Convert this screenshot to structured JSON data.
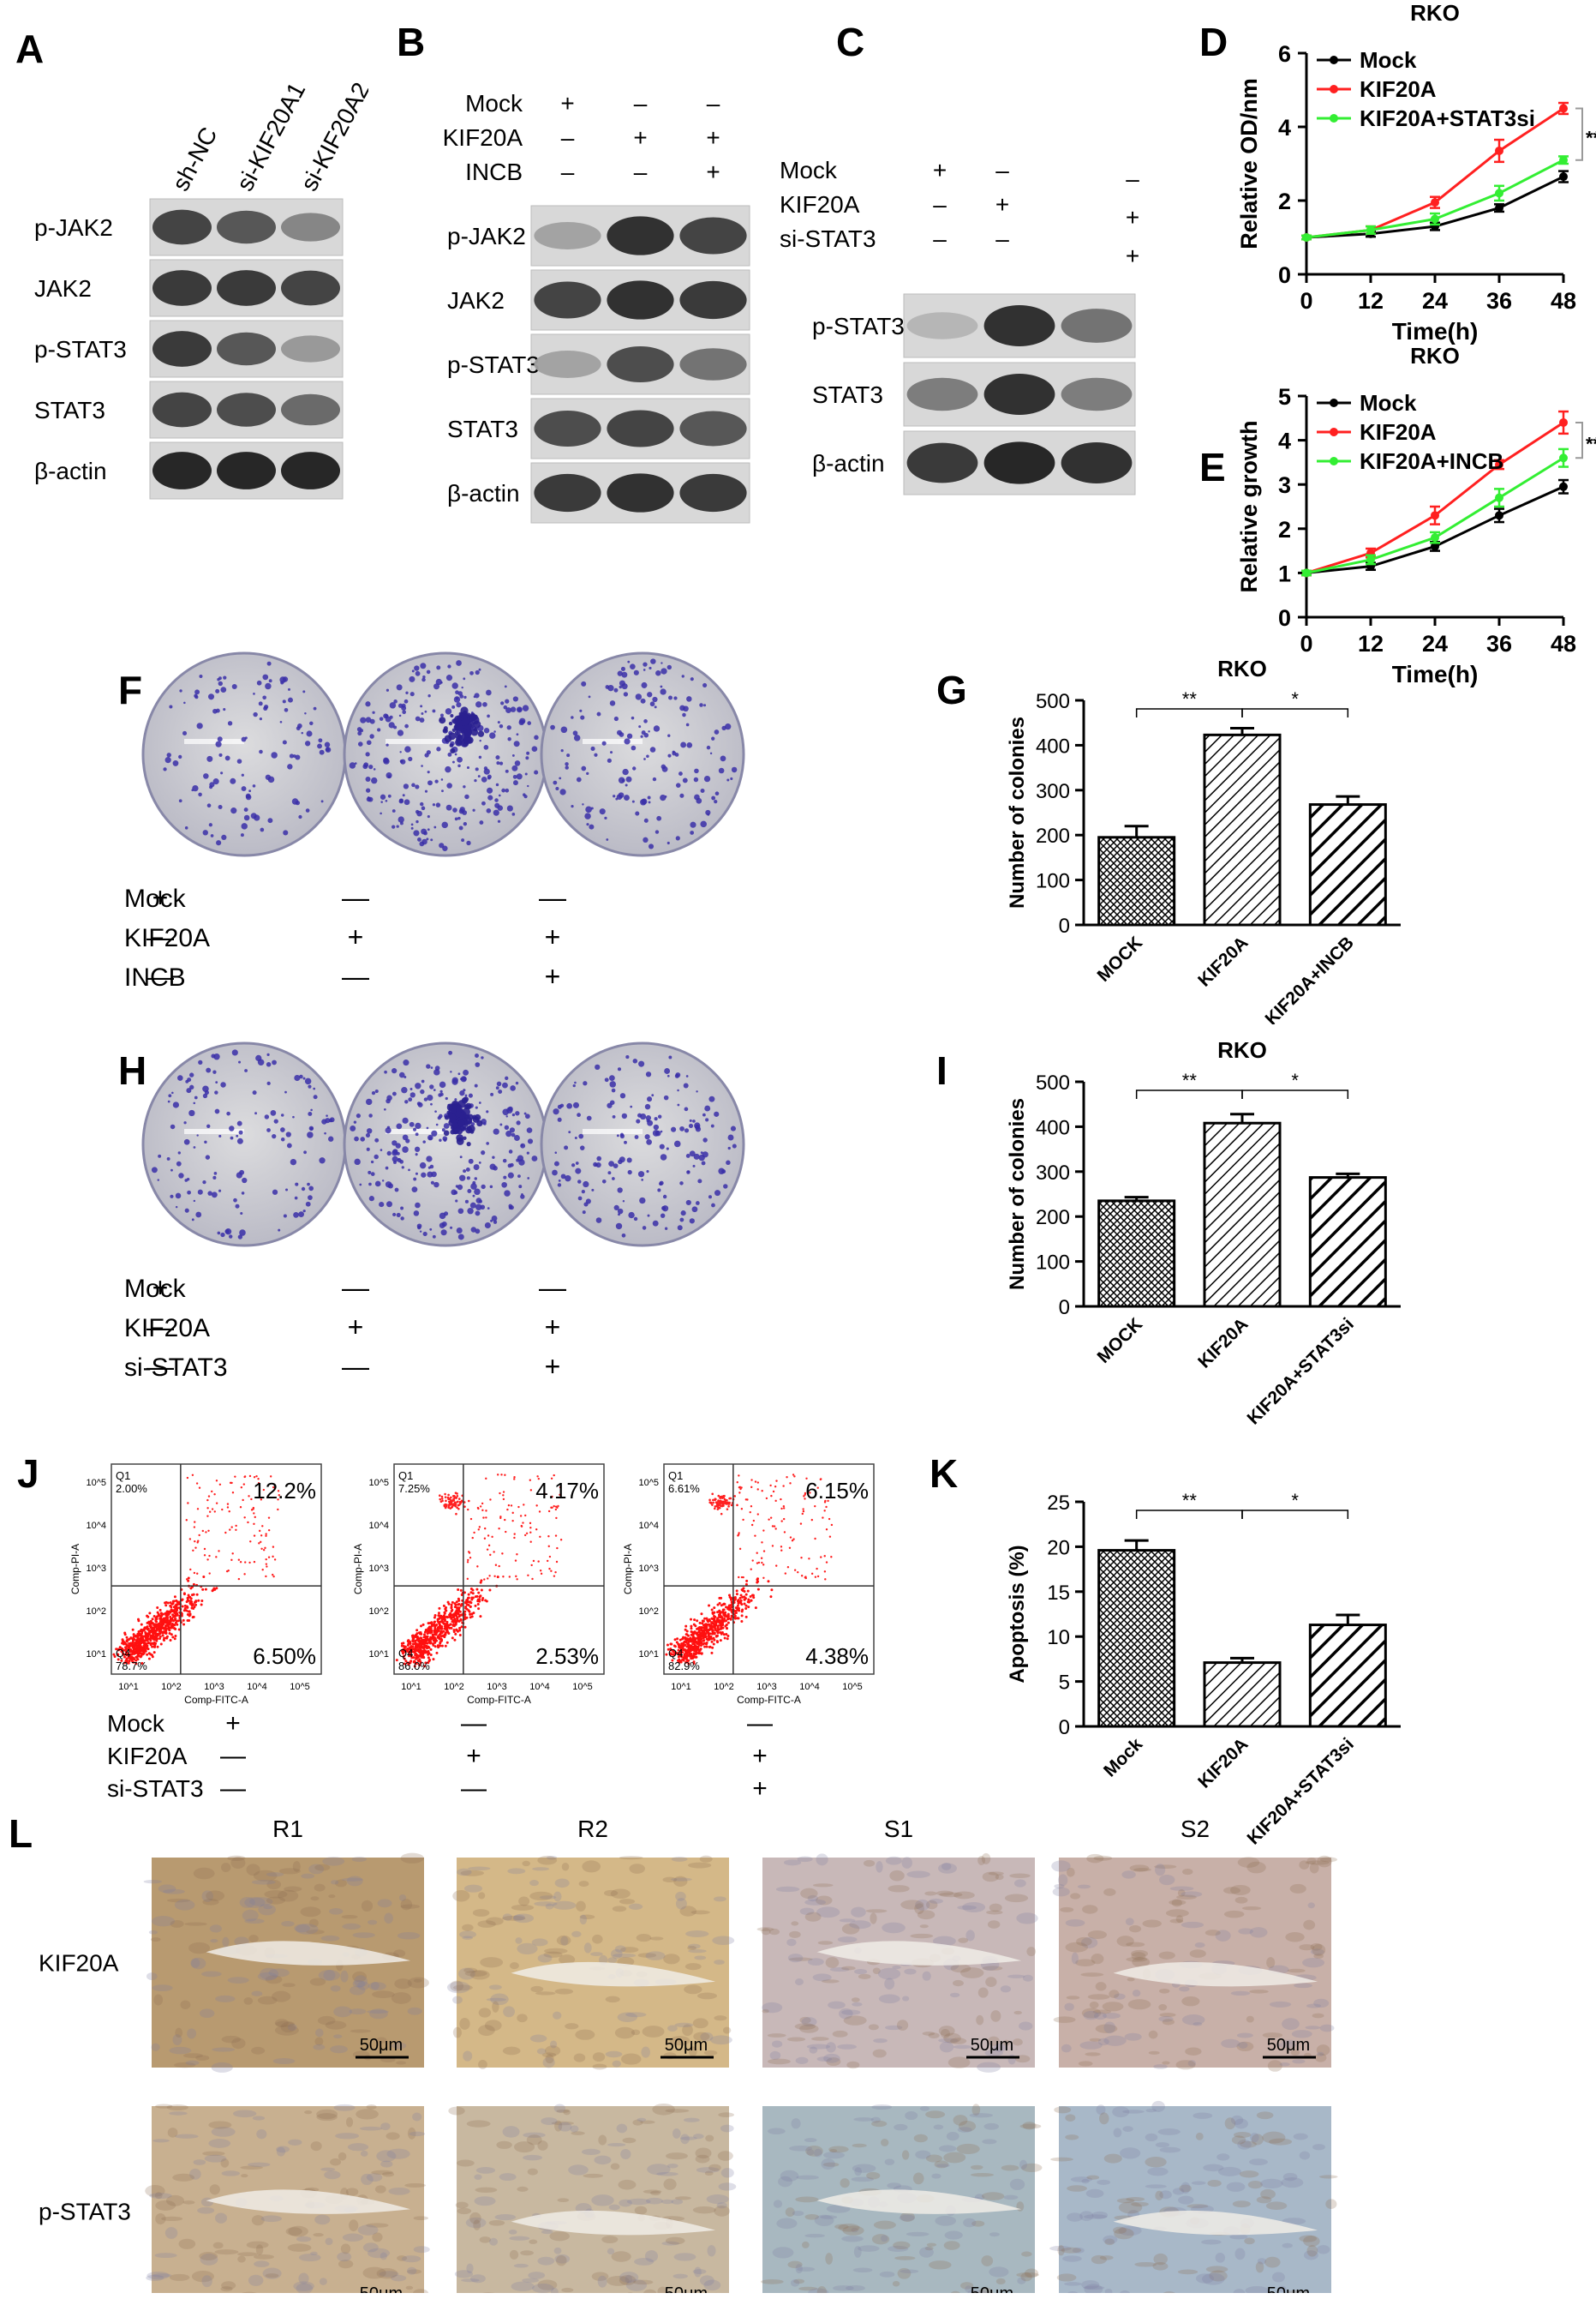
{
  "panel_letters": {
    "A": "A",
    "B": "B",
    "C": "C",
    "D": "D",
    "E": "E",
    "F": "F",
    "G": "G",
    "H": "H",
    "I": "I",
    "J": "J",
    "K": "K",
    "L": "L"
  },
  "blot_A": {
    "lanes": [
      "sh-NC",
      "si-KIF20A1",
      "si-KIF20A2"
    ],
    "rows": [
      "p-JAK2",
      "JAK2",
      "p-STAT3",
      "STAT3",
      "β-actin"
    ],
    "intensity": [
      [
        0.8,
        0.7,
        0.45
      ],
      [
        0.85,
        0.85,
        0.8
      ],
      [
        0.85,
        0.7,
        0.35
      ],
      [
        0.8,
        0.75,
        0.6
      ],
      [
        0.95,
        0.95,
        0.95
      ]
    ]
  },
  "blot_B": {
    "conditions": [
      {
        "label": "Mock",
        "signs": [
          "+",
          "–",
          "–"
        ]
      },
      {
        "label": "KIF20A",
        "signs": [
          "–",
          "+",
          "+"
        ]
      },
      {
        "label": "INCB",
        "signs": [
          "–",
          "–",
          "+"
        ]
      }
    ],
    "rows": [
      "p-JAK2",
      "JAK2",
      "p-STAT3",
      "STAT3",
      "β-actin"
    ],
    "intensity": [
      [
        0.3,
        0.9,
        0.8
      ],
      [
        0.8,
        0.9,
        0.85
      ],
      [
        0.3,
        0.75,
        0.55
      ],
      [
        0.75,
        0.8,
        0.7
      ],
      [
        0.85,
        0.9,
        0.85
      ]
    ]
  },
  "blot_C": {
    "conditions": [
      {
        "label": "Mock",
        "signs": [
          "+",
          "–",
          "–"
        ]
      },
      {
        "label": "KIF20A",
        "signs": [
          "–",
          "+",
          "+"
        ]
      },
      {
        "label": "si-STAT3",
        "signs": [
          "–",
          "–",
          "+"
        ]
      }
    ],
    "rows": [
      "p-STAT3",
      "STAT3",
      "β-actin"
    ],
    "intensity": [
      [
        0.2,
        0.9,
        0.55
      ],
      [
        0.5,
        0.9,
        0.5
      ],
      [
        0.85,
        0.95,
        0.9
      ]
    ]
  },
  "chart_data": [
    {
      "id": "D",
      "type": "line",
      "title": "RKO",
      "xlabel": "Time(h)",
      "ylabel": "Relative OD/nm",
      "x": [
        0,
        12,
        24,
        36,
        48
      ],
      "xlim": [
        0,
        48
      ],
      "ylim": [
        0,
        6
      ],
      "yticks": [
        0,
        2,
        4,
        6
      ],
      "series": [
        {
          "name": "Mock",
          "color": "#000000",
          "values": [
            1.0,
            1.1,
            1.3,
            1.8,
            2.65
          ],
          "err": [
            0.05,
            0.08,
            0.1,
            0.1,
            0.15
          ]
        },
        {
          "name": "KIF20A",
          "color": "#ff2020",
          "values": [
            1.0,
            1.2,
            1.95,
            3.35,
            4.5
          ],
          "err": [
            0.05,
            0.1,
            0.15,
            0.3,
            0.15
          ]
        },
        {
          "name": "KIF20A+STAT3si",
          "color": "#33ee33",
          "values": [
            1.0,
            1.2,
            1.5,
            2.2,
            3.1
          ],
          "err": [
            0.05,
            0.1,
            0.15,
            0.2,
            0.1
          ]
        }
      ],
      "significance": [
        "**",
        "**"
      ],
      "legend": "top-left"
    },
    {
      "id": "E",
      "type": "line",
      "title": "RKO",
      "xlabel": "Time(h)",
      "ylabel": "Relative growth",
      "x": [
        0,
        12,
        24,
        36,
        48
      ],
      "xlim": [
        0,
        48
      ],
      "ylim": [
        0,
        5
      ],
      "yticks": [
        0,
        1,
        2,
        3,
        4,
        5
      ],
      "series": [
        {
          "name": "Mock",
          "color": "#000000",
          "values": [
            1.0,
            1.15,
            1.6,
            2.3,
            2.95
          ],
          "err": [
            0.05,
            0.08,
            0.1,
            0.15,
            0.15
          ]
        },
        {
          "name": "KIF20A",
          "color": "#ff2020",
          "values": [
            1.0,
            1.45,
            2.3,
            3.45,
            4.4
          ],
          "err": [
            0.05,
            0.1,
            0.2,
            0.1,
            0.25
          ]
        },
        {
          "name": "KIF20A+INCB",
          "color": "#33ee33",
          "values": [
            1.0,
            1.3,
            1.8,
            2.7,
            3.6
          ],
          "err": [
            0.05,
            0.1,
            0.12,
            0.2,
            0.2
          ]
        }
      ],
      "significance": [
        "**",
        "**"
      ],
      "legend": "top-left"
    },
    {
      "id": "G",
      "type": "bar",
      "title": "RKO",
      "ylabel": "Number of colonies",
      "categories": [
        "MOCK",
        "KIF20A",
        "KIF20A+INCB"
      ],
      "values": [
        195,
        423,
        268
      ],
      "err": [
        25,
        15,
        18
      ],
      "ylim": [
        0,
        500
      ],
      "yticks": [
        0,
        100,
        200,
        300,
        400,
        500
      ],
      "significance": [
        "**",
        "*"
      ]
    },
    {
      "id": "I",
      "type": "bar",
      "title": "RKO",
      "ylabel": "Number of colonies",
      "categories": [
        "MOCK",
        "KIF20A",
        "KIF20A+STAT3si"
      ],
      "values": [
        235,
        408,
        287
      ],
      "err": [
        8,
        20,
        8
      ],
      "ylim": [
        0,
        500
      ],
      "yticks": [
        0,
        100,
        200,
        300,
        400,
        500
      ],
      "significance": [
        "**",
        "*"
      ]
    },
    {
      "id": "K",
      "type": "bar",
      "title": "",
      "ylabel": "Apoptosis (%)",
      "categories": [
        "Mock",
        "KIF20A",
        "KIF20A+STAT3si"
      ],
      "values": [
        19.6,
        7.1,
        11.3
      ],
      "err": [
        1.1,
        0.5,
        1.1
      ],
      "ylim": [
        0,
        25
      ],
      "yticks": [
        0,
        5,
        10,
        15,
        20,
        25
      ],
      "significance": [
        "**",
        "*"
      ]
    }
  ],
  "plates_F": {
    "conditions": [
      {
        "label": "Mock",
        "signs": [
          "+",
          "—",
          "—"
        ]
      },
      {
        "label": "KIF20A",
        "signs": [
          "—",
          "+",
          "+"
        ]
      },
      {
        "label": "INCB",
        "signs": [
          "—",
          "—",
          "+"
        ]
      }
    ],
    "colony_density": [
      0.35,
      1.0,
      0.55
    ]
  },
  "plates_H": {
    "conditions": [
      {
        "label": "Mock",
        "signs": [
          "+",
          "—",
          "—"
        ]
      },
      {
        "label": "KIF20A",
        "signs": [
          "—",
          "+",
          "+"
        ]
      },
      {
        "label": "si-STAT3",
        "signs": [
          "—",
          "—",
          "+"
        ]
      }
    ],
    "colony_density": [
      0.45,
      1.0,
      0.6
    ]
  },
  "flow_J": {
    "xlabel": "Comp-FITC-A",
    "ylabel": "Comp-PI-A",
    "plots": [
      {
        "q1": "2.00%",
        "q4": "78.7%",
        "upper_right": "12.2%",
        "lower_right": "6.50%"
      },
      {
        "q1": "7.25%",
        "q4": "86.0%",
        "upper_right": "4.17%",
        "lower_right": "2.53%"
      },
      {
        "q1": "6.61%",
        "q4": "82.9%",
        "upper_right": "6.15%",
        "lower_right": "4.38%"
      }
    ],
    "q1_label": "Q1",
    "q4_label": "Q4",
    "decades": [
      "10^1",
      "10^2",
      "10^3",
      "10^4",
      "10^5"
    ],
    "conditions": [
      {
        "label": "Mock",
        "signs": [
          "+",
          "—",
          "—"
        ]
      },
      {
        "label": "KIF20A",
        "signs": [
          "—",
          "+",
          "+"
        ]
      },
      {
        "label": "si-STAT3",
        "signs": [
          "—",
          "—",
          "+"
        ]
      }
    ]
  },
  "ihc_L": {
    "columns": [
      "R1",
      "R2",
      "S1",
      "S2"
    ],
    "rows": [
      "KIF20A",
      "p-STAT3"
    ],
    "scale_bar": "50μm",
    "tint": [
      [
        "#b89a70",
        "#d4b888",
        "#c8b8b8",
        "#c8b0a8"
      ],
      [
        "#c8b090",
        "#c8b8a0",
        "#a8b8c0",
        "#a8b8c8"
      ]
    ]
  }
}
